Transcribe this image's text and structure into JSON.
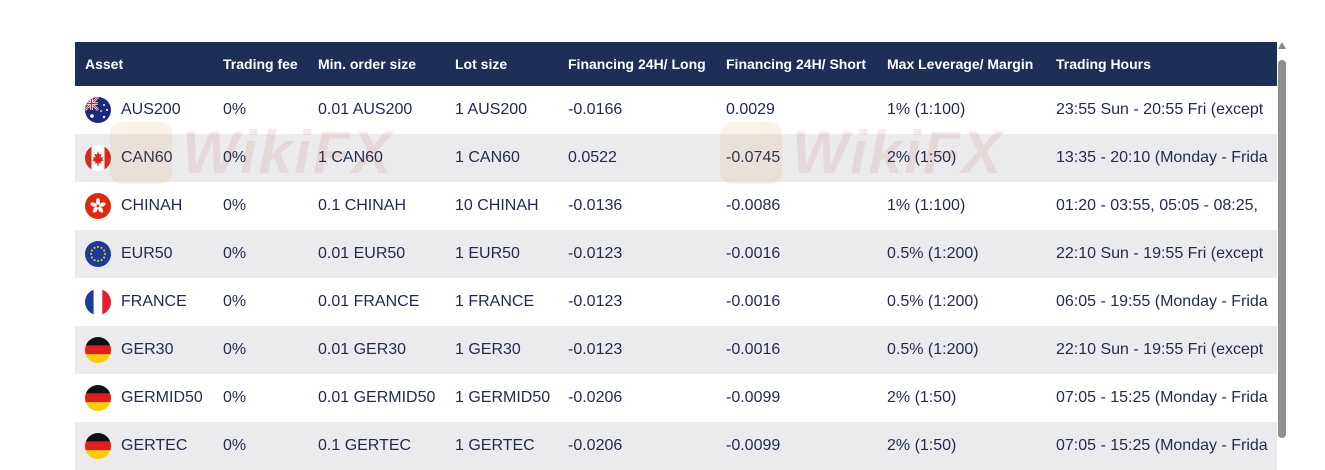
{
  "table": {
    "headers": [
      "Asset",
      "Trading fee",
      "Min. order size",
      "Lot size",
      "Financing 24H/ Long",
      "Financing 24H/ Short",
      "Max Leverage/ Margin",
      "Trading Hours"
    ],
    "rows": [
      {
        "flag": "australia-flag-icon",
        "asset": "AUS200",
        "fee": "0%",
        "min_order": "0.01 AUS200",
        "lot": "1 AUS200",
        "fin_long": "-0.0166",
        "fin_short": "0.0029",
        "leverage": "1% (1:100)",
        "hours": "23:55 Sun - 20:55 Fri (except"
      },
      {
        "flag": "canada-flag-icon",
        "asset": "CAN60",
        "fee": "0%",
        "min_order": "1 CAN60",
        "lot": "1 CAN60",
        "fin_long": "0.0522",
        "fin_short": "-0.0745",
        "leverage": "2% (1:50)",
        "hours": "13:35 - 20:10 (Monday - Frida"
      },
      {
        "flag": "hong-kong-flag-icon",
        "asset": "CHINAH",
        "fee": "0%",
        "min_order": "0.1 CHINAH",
        "lot": "10 CHINAH",
        "fin_long": "-0.0136",
        "fin_short": "-0.0086",
        "leverage": "1% (1:100)",
        "hours": "01:20 - 03:55, 05:05 - 08:25,"
      },
      {
        "flag": "eu-flag-icon",
        "asset": "EUR50",
        "fee": "0%",
        "min_order": "0.01 EUR50",
        "lot": "1 EUR50",
        "fin_long": "-0.0123",
        "fin_short": "-0.0016",
        "leverage": "0.5% (1:200)",
        "hours": "22:10 Sun - 19:55 Fri (except"
      },
      {
        "flag": "france-flag-icon",
        "asset": "FRANCE",
        "fee": "0%",
        "min_order": "0.01 FRANCE",
        "lot": "1 FRANCE",
        "fin_long": "-0.0123",
        "fin_short": "-0.0016",
        "leverage": "0.5% (1:200)",
        "hours": "06:05 - 19:55 (Monday - Frida"
      },
      {
        "flag": "germany-flag-icon",
        "asset": "GER30",
        "fee": "0%",
        "min_order": "0.01 GER30",
        "lot": "1 GER30",
        "fin_long": "-0.0123",
        "fin_short": "-0.0016",
        "leverage": "0.5% (1:200)",
        "hours": "22:10 Sun - 19:55 Fri (except"
      },
      {
        "flag": "germany-flag-icon",
        "asset": "GERMID50",
        "fee": "0%",
        "min_order": "0.01 GERMID50",
        "lot": "1 GERMID50",
        "fin_long": "-0.0206",
        "fin_short": "-0.0099",
        "leverage": "2% (1:50)",
        "hours": "07:05 - 15:25 (Monday - Frida"
      },
      {
        "flag": "germany-flag-icon",
        "asset": "GERTEC",
        "fee": "0%",
        "min_order": "0.1 GERTEC",
        "lot": "1 GERTEC",
        "fin_long": "-0.0206",
        "fin_short": "-0.0099",
        "leverage": "2% (1:50)",
        "hours": "07:05 - 15:25 (Monday - Frida"
      }
    ]
  },
  "watermark": {
    "text": "WikiFX"
  },
  "colors": {
    "header_bg": "#1d2e57",
    "header_text": "#ffffff",
    "row_alt_bg": "#ebebee",
    "cell_text": "#1f2a4d"
  }
}
